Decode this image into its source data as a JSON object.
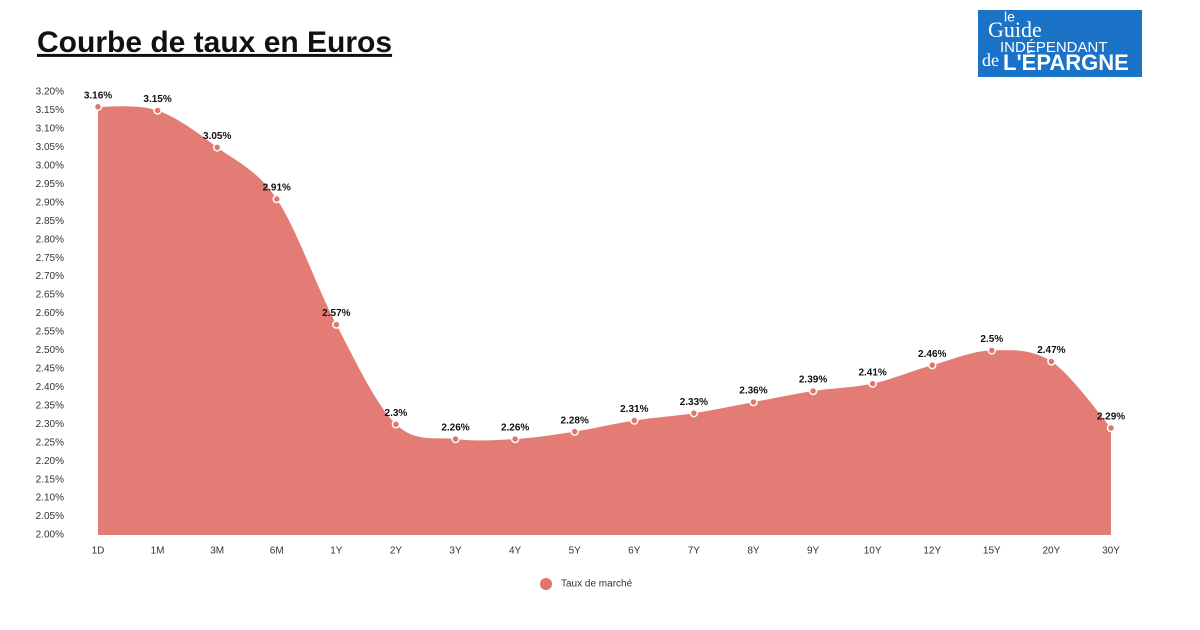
{
  "chart_data": {
    "type": "area",
    "title": "Courbe de taux en Euros",
    "categories": [
      "1D",
      "1M",
      "3M",
      "6M",
      "1Y",
      "2Y",
      "3Y",
      "4Y",
      "5Y",
      "6Y",
      "7Y",
      "8Y",
      "9Y",
      "10Y",
      "12Y",
      "15Y",
      "20Y",
      "30Y"
    ],
    "series": [
      {
        "name": "Taux de marché",
        "color": "#e0756e",
        "values": [
          3.16,
          3.15,
          3.05,
          2.91,
          2.57,
          2.3,
          2.26,
          2.26,
          2.28,
          2.31,
          2.33,
          2.36,
          2.39,
          2.41,
          2.46,
          2.5,
          2.47,
          2.29
        ],
        "value_labels": [
          "3.16%",
          "3.15%",
          "3.05%",
          "2.91%",
          "2.57%",
          "2.3%",
          "2.26%",
          "2.26%",
          "2.28%",
          "2.31%",
          "2.33%",
          "2.36%",
          "2.39%",
          "2.41%",
          "2.46%",
          "2.5%",
          "2.47%",
          "2.29%"
        ]
      }
    ],
    "ylim": [
      2.0,
      3.2
    ],
    "yticks": [
      {
        "value": 2.0,
        "label": "2.00%"
      },
      {
        "value": 2.05,
        "label": "2.05%"
      },
      {
        "value": 2.1,
        "label": "2.10%"
      },
      {
        "value": 2.15,
        "label": "2.15%"
      },
      {
        "value": 2.2,
        "label": "2.20%"
      },
      {
        "value": 2.25,
        "label": "2.25%"
      },
      {
        "value": 2.3,
        "label": "2.30%"
      },
      {
        "value": 2.35,
        "label": "2.35%"
      },
      {
        "value": 2.4,
        "label": "2.40%"
      },
      {
        "value": 2.45,
        "label": "2.45%"
      },
      {
        "value": 2.5,
        "label": "2.50%"
      },
      {
        "value": 2.55,
        "label": "2.55%"
      },
      {
        "value": 2.6,
        "label": "2.60%"
      },
      {
        "value": 2.65,
        "label": "2.65%"
      },
      {
        "value": 2.7,
        "label": "2.70%"
      },
      {
        "value": 2.75,
        "label": "2.75%"
      },
      {
        "value": 2.8,
        "label": "2.80%"
      },
      {
        "value": 2.85,
        "label": "2.85%"
      },
      {
        "value": 2.9,
        "label": "2.90%"
      },
      {
        "value": 2.95,
        "label": "2.95%"
      },
      {
        "value": 3.0,
        "label": "3.00%"
      },
      {
        "value": 3.05,
        "label": "3.05%"
      },
      {
        "value": 3.1,
        "label": "3.10%"
      },
      {
        "value": 3.15,
        "label": "3.15%"
      },
      {
        "value": 3.2,
        "label": "3.20%"
      }
    ],
    "grid": false
  },
  "logo": {
    "line1": "le",
    "line2": "Guide",
    "line3": "INDÉPENDANT",
    "line4": "de",
    "line5": "L'ÉPARGNE"
  }
}
